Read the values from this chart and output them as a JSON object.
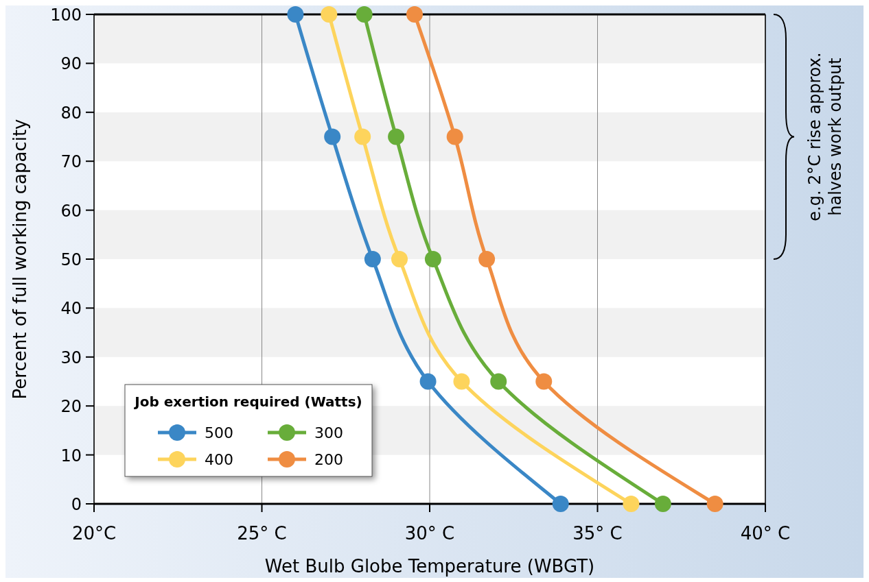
{
  "chart_data": {
    "type": "line",
    "xlabel": "Wet Bulb Globe Temperature (WBGT)",
    "ylabel": "Percent of full working capacity",
    "legend_title": "Job exertion required (Watts)",
    "xlim": [
      20,
      40
    ],
    "xticks": [
      {
        "value": 20,
        "label": "20°C"
      },
      {
        "value": 25,
        "label": "25° C"
      },
      {
        "value": 30,
        "label": "30° C"
      },
      {
        "value": 35,
        "label": "35° C"
      },
      {
        "value": 40,
        "label": "40° C"
      }
    ],
    "ylim": [
      0,
      100
    ],
    "yticks": [
      0,
      10,
      20,
      30,
      40,
      50,
      60,
      70,
      80,
      90,
      100
    ],
    "grid": "x",
    "legend": "bottom left",
    "marker": "circle",
    "line_style": "solid",
    "series": [
      {
        "name": "500",
        "color": "#3a87c6",
        "x": [
          26.0,
          27.1,
          28.3,
          29.95,
          33.9
        ],
        "values": [
          100,
          75,
          50,
          25,
          0
        ]
      },
      {
        "name": "400",
        "color": "#fdd45c",
        "x": [
          27.0,
          28.0,
          29.1,
          30.95,
          36.0
        ],
        "values": [
          100,
          75,
          50,
          25,
          0
        ]
      },
      {
        "name": "300",
        "color": "#68ad3a",
        "x": [
          28.05,
          29.0,
          30.1,
          32.05,
          36.95
        ],
        "values": [
          100,
          75,
          50,
          25,
          0
        ]
      },
      {
        "name": "200",
        "color": "#ef8d42",
        "x": [
          29.55,
          30.75,
          31.7,
          33.4,
          38.5
        ],
        "values": [
          100,
          75,
          50,
          25,
          0
        ]
      }
    ],
    "annotations": [
      "e.g. 2°C rise approx. halves work output"
    ]
  }
}
